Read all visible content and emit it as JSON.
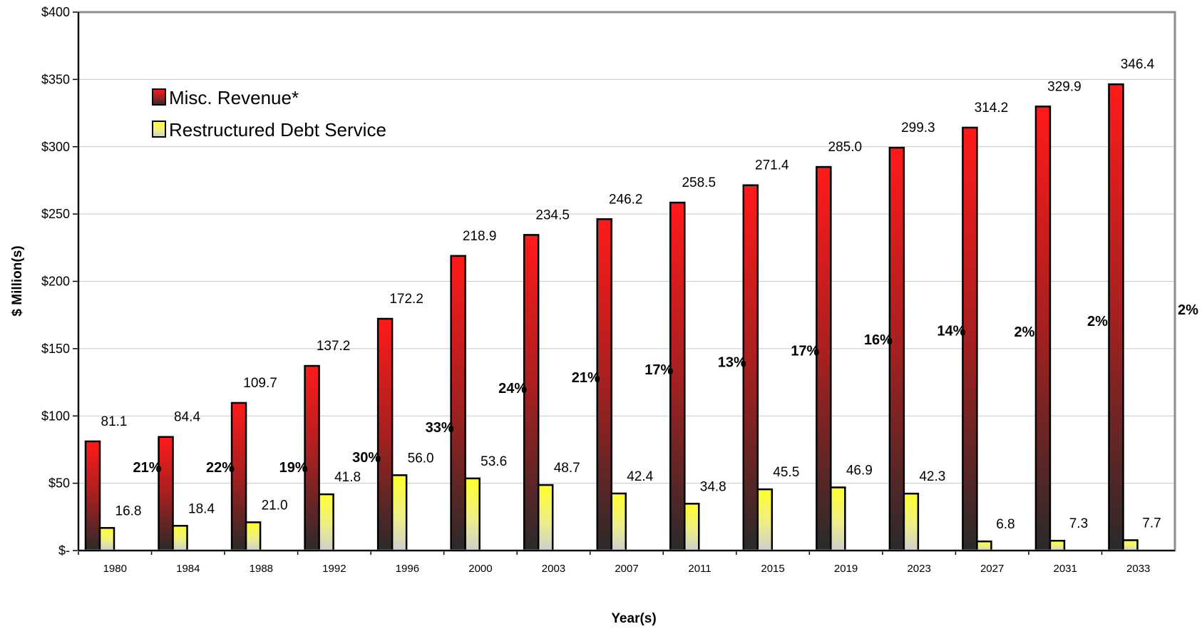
{
  "chart_data": {
    "type": "bar",
    "title": "",
    "xlabel": "Year(s)",
    "ylabel": "$ Million(s)",
    "ylim": [
      0,
      400
    ],
    "y_ticks": [
      {
        "value": 0,
        "label": "$-"
      },
      {
        "value": 50,
        "label": "$50"
      },
      {
        "value": 100,
        "label": "$100"
      },
      {
        "value": 150,
        "label": "$150"
      },
      {
        "value": 200,
        "label": "$200"
      },
      {
        "value": 250,
        "label": "$250"
      },
      {
        "value": 300,
        "label": "$300"
      },
      {
        "value": 350,
        "label": "$350"
      },
      {
        "value": 400,
        "label": "$400"
      }
    ],
    "grid": true,
    "legend_position": "top-left",
    "categories": [
      "1980",
      "1984",
      "1988",
      "1992",
      "1996",
      "2000",
      "2003",
      "2007",
      "2011",
      "2015",
      "2019",
      "2023",
      "2027",
      "2031",
      "2033"
    ],
    "series": [
      {
        "name": "Misc. Revenue*",
        "color": "#ff1a1a",
        "values": [
          81.1,
          84.4,
          109.7,
          137.2,
          172.2,
          218.9,
          234.5,
          246.2,
          258.5,
          271.4,
          285.0,
          299.3,
          314.2,
          329.9,
          346.4
        ],
        "labels": [
          "81.1",
          "84.4",
          "109.7",
          "137.2",
          "172.2",
          "218.9",
          "234.5",
          "246.2",
          "258.5",
          "271.4",
          "285.0",
          "299.3",
          "314.2",
          "329.9",
          "346.4"
        ]
      },
      {
        "name": "Restructured Debt Service",
        "color": "#ffff33",
        "values": [
          16.8,
          18.4,
          21.0,
          41.8,
          56.0,
          53.6,
          48.7,
          42.4,
          34.8,
          45.5,
          46.9,
          42.3,
          6.8,
          7.3,
          7.7
        ],
        "labels": [
          "16.8",
          "18.4",
          "21.0",
          "41.8",
          "56.0",
          "53.6",
          "48.7",
          "42.4",
          "34.8",
          "45.5",
          "46.9",
          "42.3",
          "6.8",
          "7.3",
          "7.7"
        ]
      }
    ],
    "percent_labels": [
      "21%",
      "22%",
      "19%",
      "30%",
      "33%",
      "24%",
      "21%",
      "17%",
      "13%",
      "17%",
      "16%",
      "14%",
      "2%",
      "2%",
      "2%"
    ]
  }
}
